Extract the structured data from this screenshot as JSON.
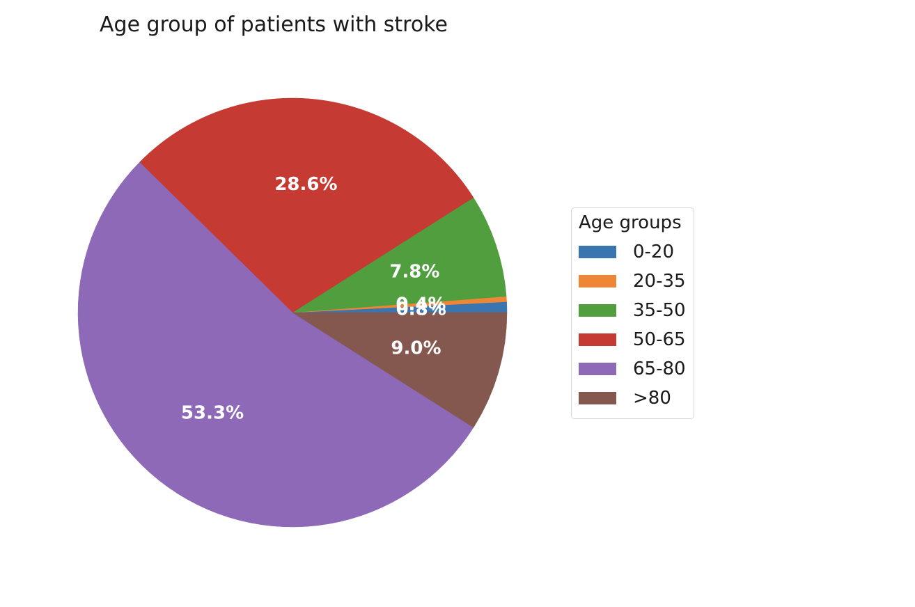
{
  "chart_data": {
    "type": "pie",
    "title": "Age group of patients with stroke",
    "legend": {
      "title": "Age groups",
      "placement": "right"
    },
    "slices": [
      {
        "label": "0-20",
        "value": 0.8,
        "text": "0.8%",
        "color": "#3a75b0"
      },
      {
        "label": "20-35",
        "value": 0.4,
        "text": "0.4%",
        "color": "#ef8636"
      },
      {
        "label": "35-50",
        "value": 7.8,
        "text": "7.8%",
        "color": "#519e3e"
      },
      {
        "label": "50-65",
        "value": 28.6,
        "text": "28.6%",
        "color": "#c53a32"
      },
      {
        "label": "65-80",
        "value": 53.3,
        "text": "53.3%",
        "color": "#8d69b8"
      },
      {
        "label": ">80",
        "value": 9.0,
        "text": "9.0%",
        "color": "#84584e"
      }
    ]
  }
}
